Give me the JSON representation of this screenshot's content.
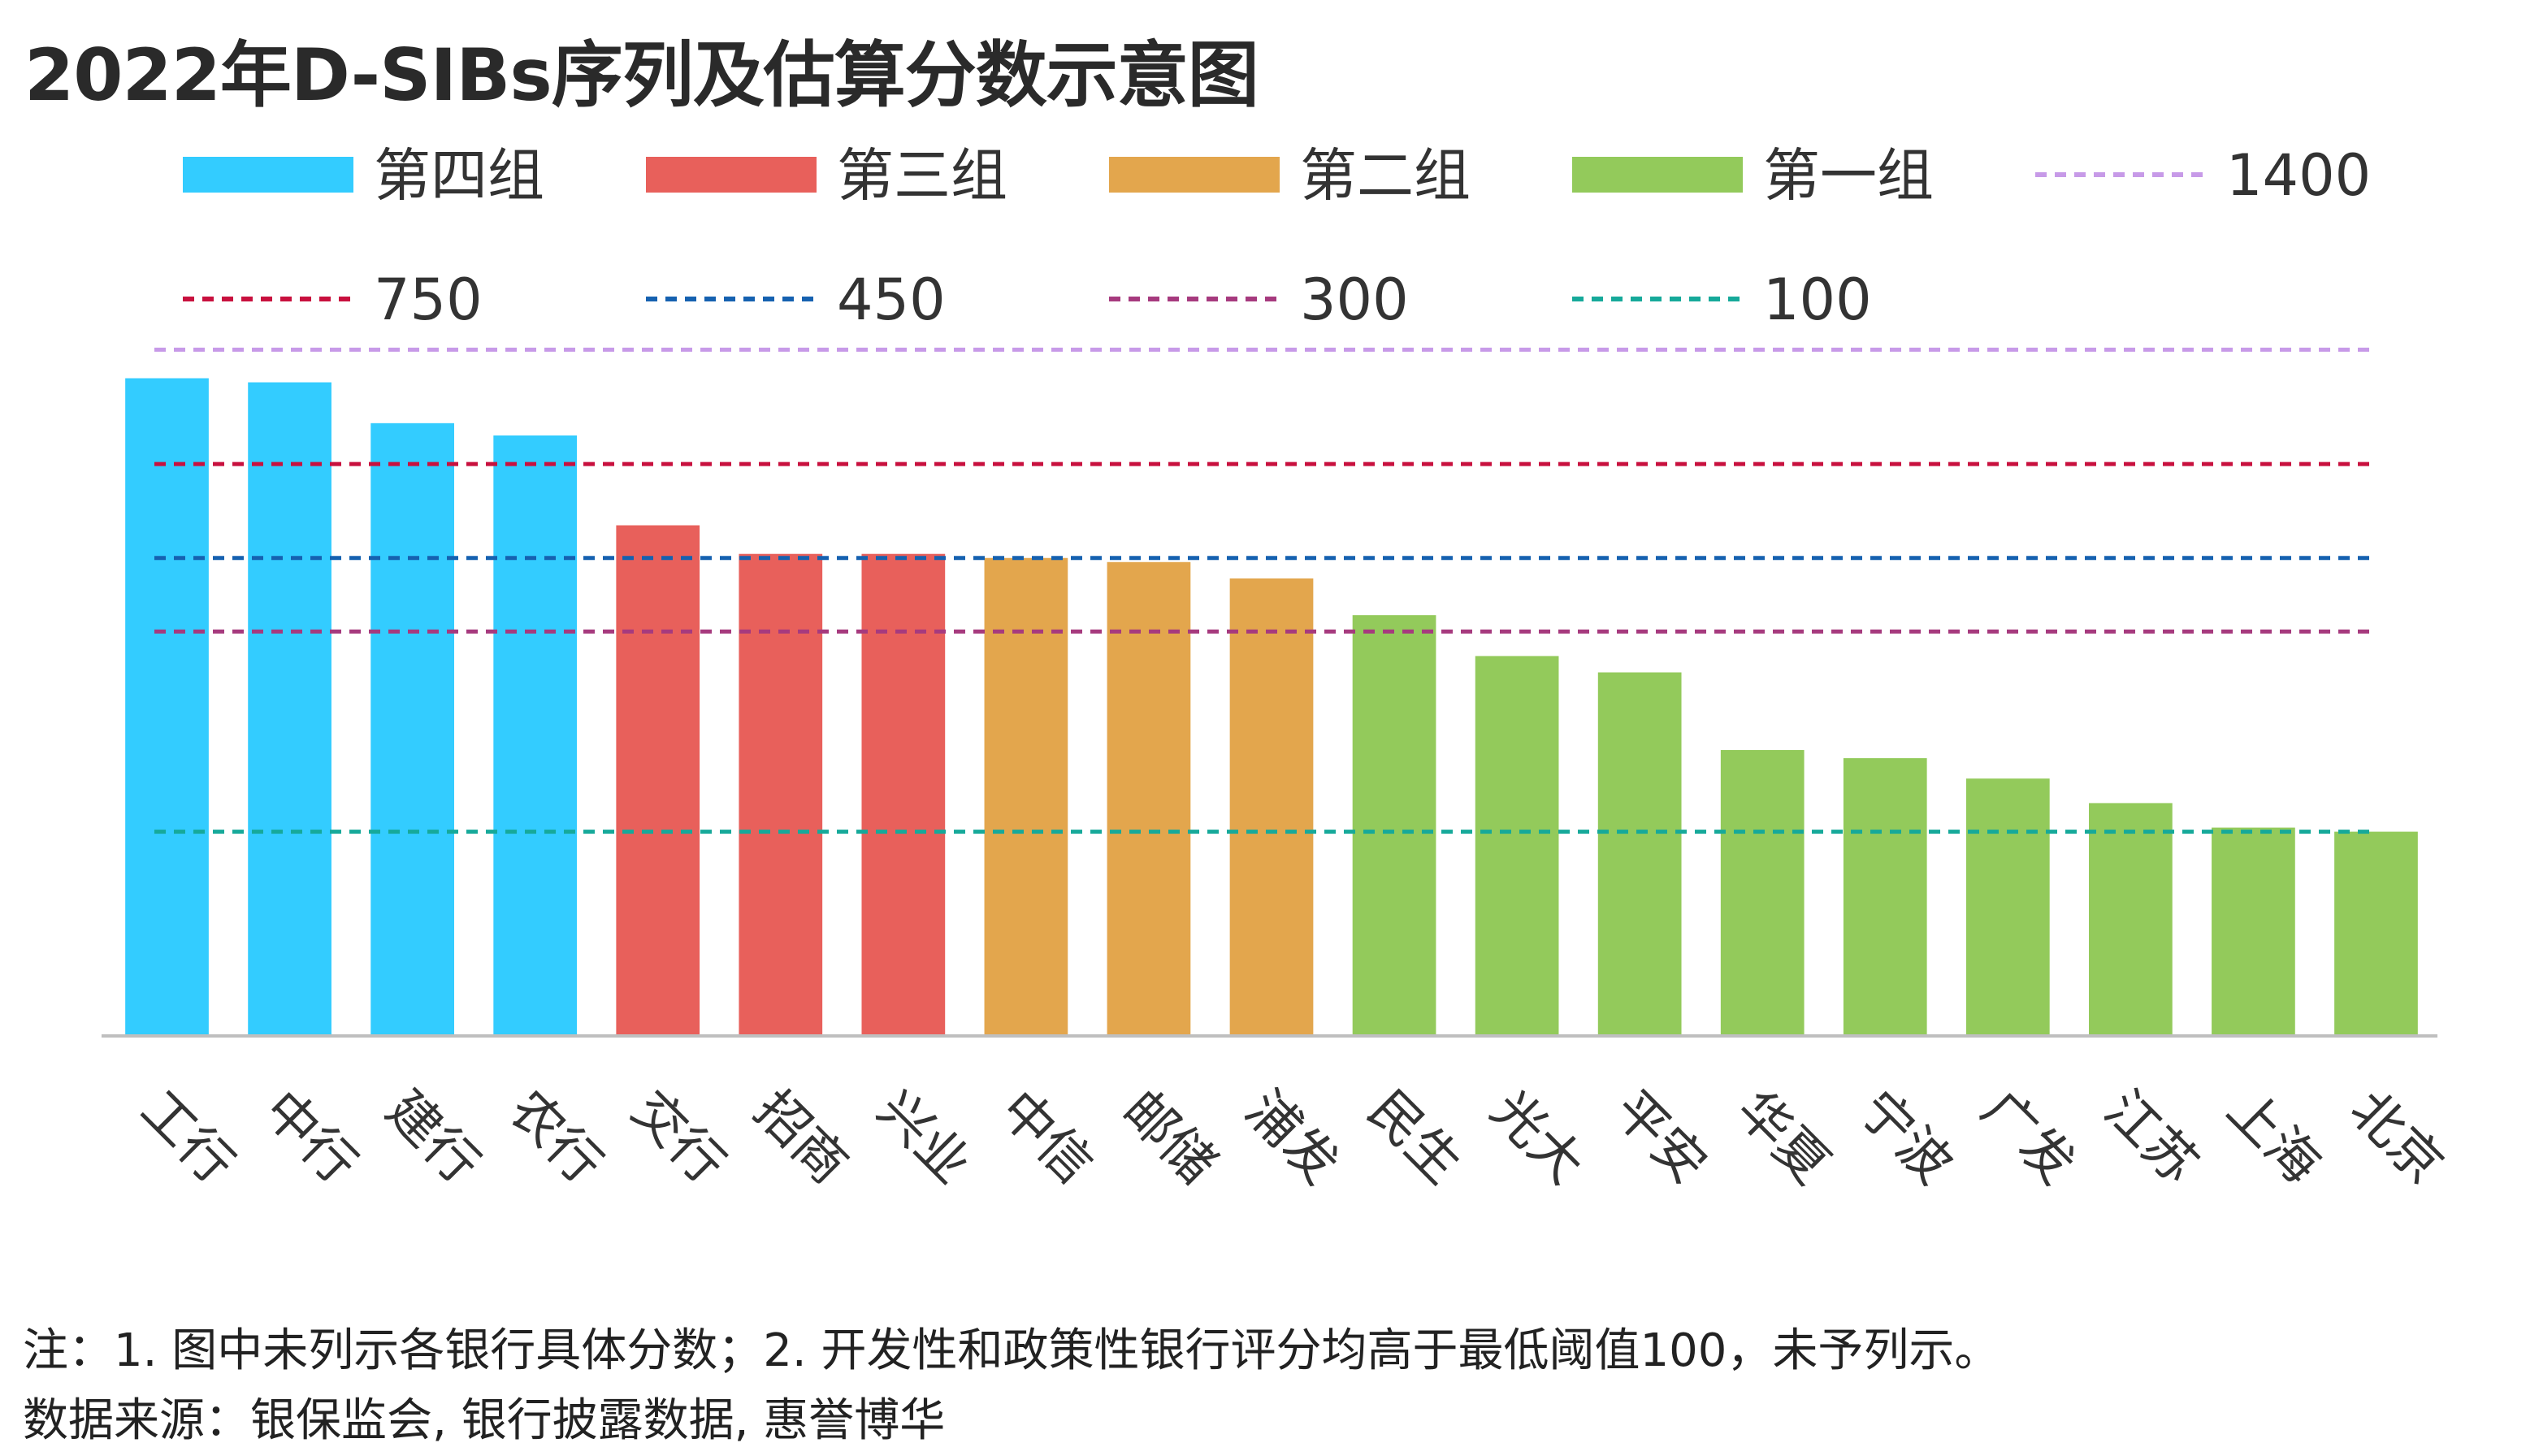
{
  "chart_data": {
    "type": "bar",
    "title": "2022年D-SIBs序列及估算分数示意图",
    "categories": [
      "工行",
      "中行",
      "建行",
      "农行",
      "交行",
      "招商",
      "兴业",
      "中信",
      "邮储",
      "浦发",
      "民生",
      "光大",
      "平安",
      "华夏",
      "宁波",
      "广发",
      "江苏",
      "上海",
      "北京"
    ],
    "values": [
      1610,
      1600,
      1500,
      1470,
      1250,
      1180,
      1180,
      1170,
      1160,
      1120,
      1030,
      930,
      890,
      700,
      680,
      630,
      570,
      510,
      500
    ],
    "groups": [
      "第四组",
      "第四组",
      "第四组",
      "第四组",
      "第三组",
      "第三组",
      "第三组",
      "第二组",
      "第二组",
      "第二组",
      "第一组",
      "第一组",
      "第一组",
      "第一组",
      "第一组",
      "第一组",
      "第一组",
      "第一组",
      "第一组"
    ],
    "series": [
      {
        "name": "第四组",
        "color": "#33CCFF"
      },
      {
        "name": "第三组",
        "color": "#E8605B"
      },
      {
        "name": "第二组",
        "color": "#E3A64D"
      },
      {
        "name": "第一组",
        "color": "#93CA5B"
      }
    ],
    "thresholds": [
      {
        "name": "1400",
        "y": 1680,
        "color": "#C79AE8"
      },
      {
        "name": "750",
        "y": 1400,
        "color": "#C8103E"
      },
      {
        "name": "450",
        "y": 1170,
        "color": "#1561B0"
      },
      {
        "name": "300",
        "y": 990,
        "color": "#A63A7E"
      },
      {
        "name": "100",
        "y": 500,
        "color": "#16A99A"
      }
    ],
    "ylim": [
      0,
      1800
    ],
    "xlabel": "",
    "ylabel": "",
    "grid": false,
    "legend_position": "top"
  },
  "notes": {
    "line1": "注：1. 图中未列示各银行具体分数；2. 开发性和政策性银行评分均高于最低阈值100，未予列示。",
    "line2": "数据来源：银保监会, 银行披露数据, 惠誉博华"
  }
}
